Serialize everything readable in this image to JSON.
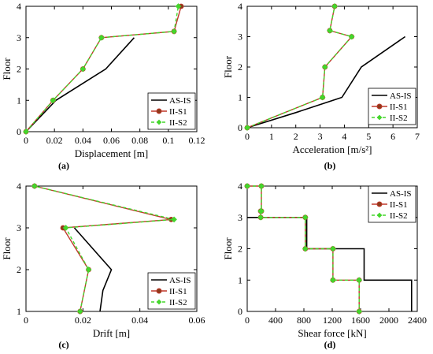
{
  "chart_data": [
    {
      "id": "a",
      "type": "line",
      "caption": "(a)",
      "xlabel": "Displacement [m]",
      "ylabel": "Floor",
      "xlim": [
        0,
        0.12
      ],
      "ylim": [
        0,
        4
      ],
      "xticks": [
        0,
        0.02,
        0.04,
        0.06,
        0.08,
        0.1,
        0.12
      ],
      "xtick_labels": [
        "0",
        "0.02",
        "0.04",
        "0.06",
        "0.08",
        "0.1",
        "0.12"
      ],
      "yticks": [
        0,
        1,
        2,
        3,
        4
      ],
      "ytick_labels": [
        "0",
        "1",
        "2",
        "3",
        "4"
      ],
      "grid": false,
      "legend_position": "bottom-right",
      "series": [
        {
          "name": "AS-IS",
          "x": [
            0,
            0.021,
            0.056,
            0.076
          ],
          "y": [
            0,
            1,
            2,
            3
          ]
        },
        {
          "name": "II-S1",
          "x": [
            0,
            0.019,
            0.04,
            0.053,
            0.104,
            0.109
          ],
          "y": [
            0,
            1,
            2,
            3,
            3.2,
            4
          ]
        },
        {
          "name": "II-S2",
          "x": [
            0,
            0.019,
            0.04,
            0.053,
            0.104,
            0.107
          ],
          "y": [
            0,
            1,
            2,
            3,
            3.2,
            4
          ]
        }
      ]
    },
    {
      "id": "b",
      "type": "line",
      "caption": "(b)",
      "xlabel": "Acceleration [m/s²]",
      "ylabel": "Floor",
      "xlim": [
        0,
        7
      ],
      "ylim": [
        0,
        4
      ],
      "xticks": [
        0,
        1,
        2,
        3,
        4,
        5,
        6,
        7
      ],
      "xtick_labels": [
        "0",
        "1",
        "2",
        "3",
        "4",
        "5",
        "6",
        "7"
      ],
      "yticks": [
        0,
        1,
        2,
        3,
        4
      ],
      "ytick_labels": [
        "0",
        "1",
        "2",
        "3",
        "4"
      ],
      "grid": false,
      "legend_position": "bottom-right",
      "series": [
        {
          "name": "AS-IS",
          "x": [
            0,
            2.0,
            3.9,
            4.7,
            6.5
          ],
          "y": [
            0,
            0.5,
            1,
            2,
            3
          ]
        },
        {
          "name": "II-S1",
          "x": [
            0,
            3.1,
            3.2,
            4.3,
            3.4,
            3.6
          ],
          "y": [
            0,
            1,
            2,
            3,
            3.2,
            4
          ]
        },
        {
          "name": "II-S2",
          "x": [
            0,
            3.1,
            3.2,
            4.3,
            3.4,
            3.6
          ],
          "y": [
            0,
            1,
            2,
            3,
            3.2,
            4
          ]
        }
      ]
    },
    {
      "id": "c",
      "type": "line",
      "caption": "(c)",
      "xlabel": "Drift [m]",
      "ylabel": "Floor",
      "xlim": [
        0,
        0.06
      ],
      "ylim": [
        1,
        4
      ],
      "xticks": [
        0,
        0.02,
        0.04,
        0.06
      ],
      "xtick_labels": [
        "0",
        "0.02",
        "0.04",
        "0.06"
      ],
      "yticks": [
        1,
        2,
        3,
        4
      ],
      "ytick_labels": [
        "1",
        "2",
        "3",
        "4"
      ],
      "grid": false,
      "legend_position": "bottom-right",
      "series": [
        {
          "name": "AS-IS",
          "x": [
            0.026,
            0.027,
            0.03,
            0.017
          ],
          "y": [
            1,
            1.5,
            2,
            3
          ]
        },
        {
          "name": "II-S1",
          "x": [
            0.019,
            0.022,
            0.013,
            0.051,
            0.003
          ],
          "y": [
            1,
            2,
            3,
            3.2,
            4
          ]
        },
        {
          "name": "II-S2",
          "x": [
            0.019,
            0.022,
            0.014,
            0.052,
            0.003
          ],
          "y": [
            1,
            2,
            3,
            3.2,
            4
          ]
        }
      ]
    },
    {
      "id": "d",
      "type": "line",
      "caption": "(d)",
      "xlabel": "Shear force [kN]",
      "ylabel": "Floor",
      "xlim": [
        0,
        2400
      ],
      "ylim": [
        0,
        4
      ],
      "xticks": [
        0,
        400,
        800,
        1200,
        1600,
        2000,
        2400
      ],
      "xtick_labels": [
        "0",
        "400",
        "800",
        "1200",
        "1600",
        "2000",
        "2400"
      ],
      "yticks": [
        0,
        1,
        2,
        3,
        4
      ],
      "ytick_labels": [
        "0",
        "1",
        "2",
        "3",
        "4"
      ],
      "grid": false,
      "legend_position": "top-right",
      "series": [
        {
          "name": "AS-IS",
          "x": [
            0,
            840,
            840,
            1650,
            1650,
            2320,
            2320
          ],
          "y": [
            3,
            3,
            2,
            2,
            1,
            1,
            0
          ]
        },
        {
          "name": "II-S1",
          "x": [
            0,
            200,
            200,
            190,
            190,
            820,
            820,
            1210,
            1210,
            1580,
            1580
          ],
          "y": [
            4,
            4,
            3.2,
            3.2,
            3,
            3,
            2,
            2,
            1,
            1,
            0
          ]
        },
        {
          "name": "II-S2",
          "x": [
            0,
            200,
            200,
            190,
            190,
            820,
            820,
            1210,
            1210,
            1580,
            1580
          ],
          "y": [
            4,
            4,
            3.2,
            3.2,
            3,
            3,
            2,
            2,
            1,
            1,
            0
          ]
        }
      ]
    }
  ],
  "styles": {
    "AS-IS": {
      "color": "#000000",
      "marker": "none",
      "dash": "none"
    },
    "II-S1": {
      "color": "#c0392b",
      "marker": "circle",
      "marker_fill": "#8b3a1a",
      "dash": "none"
    },
    "II-S2": {
      "color": "#44d62c",
      "marker": "diamond",
      "marker_fill": "#44d62c",
      "dash": "dashed"
    }
  }
}
